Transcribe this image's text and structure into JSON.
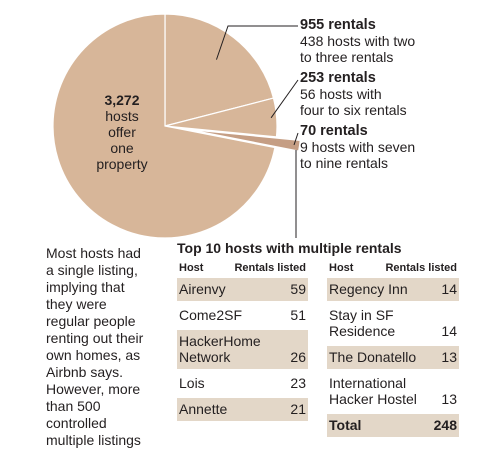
{
  "chart_data": {
    "type": "pie",
    "slices": [
      {
        "label_value": "3,272",
        "label_text": [
          "hosts",
          "offer",
          "one",
          "property"
        ],
        "value": 3272,
        "color": "#d7b699"
      },
      {
        "label_value": "955 rentals",
        "label_text": "438 hosts with two to three rentals",
        "value": 955,
        "color": "#d7b699"
      },
      {
        "label_value": "253 rentals",
        "label_text": "56 hosts with four to six rentals",
        "value": 253,
        "color": "#d7b699"
      },
      {
        "label_value": "70 rentals",
        "label_text": "9 hosts with seven to nine rentals",
        "value": 70,
        "color": "#c59e84",
        "exploded": true
      }
    ]
  },
  "pie_center": {
    "value": "3,272",
    "lines": [
      "hosts",
      "offer",
      "one",
      "property"
    ]
  },
  "annotations": [
    {
      "head": "955 rentals",
      "l1": "438 hosts with two",
      "l2": "to three rentals"
    },
    {
      "head": "253 rentals",
      "l1": "56 hosts with",
      "l2": "four to six rentals"
    },
    {
      "head": "70 rentals",
      "l1": "9 hosts with seven",
      "l2": "to nine rentals"
    }
  ],
  "body_text": [
    "Most hosts had",
    "a single listing,",
    "implying that",
    "they were",
    "regular people",
    "renting out their",
    "own homes, as",
    "Airbnb says.",
    "However, more",
    "than 500",
    "controlled",
    "multiple listings"
  ],
  "table": {
    "title": "Top 10 hosts with multiple rentals",
    "col_host": "Host",
    "col_rentals": "Rentals listed",
    "left": [
      {
        "host": [
          "Airenvy"
        ],
        "rentals": "59"
      },
      {
        "host": [
          "Come2SF"
        ],
        "rentals": "51"
      },
      {
        "host": [
          "HackerHome",
          "Network"
        ],
        "rentals": "26"
      },
      {
        "host": [
          "Lois"
        ],
        "rentals": "23"
      },
      {
        "host": [
          "Annette"
        ],
        "rentals": "21"
      }
    ],
    "right": [
      {
        "host": [
          "Regency Inn"
        ],
        "rentals": "14"
      },
      {
        "host": [
          "Stay in SF",
          "Residence"
        ],
        "rentals": "14"
      },
      {
        "host": [
          "The Donatello"
        ],
        "rentals": "13"
      },
      {
        "host": [
          "International",
          "Hacker Hostel"
        ],
        "rentals": "13"
      },
      {
        "host": [
          "Total"
        ],
        "rentals": "248"
      }
    ]
  }
}
